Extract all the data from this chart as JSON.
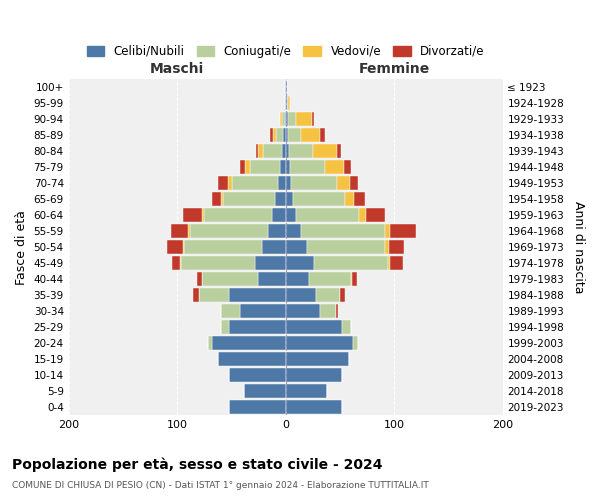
{
  "age_groups": [
    "0-4",
    "5-9",
    "10-14",
    "15-19",
    "20-24",
    "25-29",
    "30-34",
    "35-39",
    "40-44",
    "45-49",
    "50-54",
    "55-59",
    "60-64",
    "65-69",
    "70-74",
    "75-79",
    "80-84",
    "85-89",
    "90-94",
    "95-99",
    "100+"
  ],
  "birth_years": [
    "2019-2023",
    "2014-2018",
    "2009-2013",
    "2004-2008",
    "1999-2003",
    "1994-1998",
    "1989-1993",
    "1984-1988",
    "1979-1983",
    "1974-1978",
    "1969-1973",
    "1964-1968",
    "1959-1963",
    "1954-1958",
    "1949-1953",
    "1944-1948",
    "1939-1943",
    "1934-1938",
    "1929-1933",
    "1924-1928",
    "≤ 1923"
  ],
  "colors": {
    "celibe": "#4e79a7",
    "coniugato": "#b9cf9e",
    "vedovo": "#f5c242",
    "divorziato": "#c0392b"
  },
  "maschi": {
    "celibe": [
      52,
      38,
      52,
      62,
      68,
      52,
      42,
      52,
      25,
      28,
      22,
      16,
      13,
      10,
      7,
      5,
      3,
      2,
      1,
      1,
      1
    ],
    "coniugato": [
      0,
      0,
      0,
      0,
      4,
      8,
      18,
      28,
      52,
      68,
      72,
      72,
      62,
      48,
      42,
      28,
      18,
      7,
      2,
      0,
      0
    ],
    "vedovo": [
      0,
      0,
      0,
      0,
      0,
      0,
      0,
      0,
      0,
      1,
      1,
      2,
      2,
      2,
      4,
      4,
      4,
      3,
      2,
      0,
      0
    ],
    "divorziato": [
      0,
      0,
      0,
      0,
      0,
      0,
      0,
      5,
      5,
      8,
      14,
      16,
      18,
      8,
      9,
      5,
      2,
      2,
      0,
      0,
      0
    ]
  },
  "femmine": {
    "nubile": [
      52,
      38,
      52,
      58,
      62,
      52,
      32,
      28,
      22,
      26,
      20,
      14,
      10,
      7,
      5,
      4,
      3,
      2,
      2,
      1,
      1
    ],
    "coniugata": [
      0,
      0,
      0,
      0,
      5,
      8,
      14,
      22,
      38,
      68,
      72,
      78,
      58,
      48,
      42,
      32,
      22,
      12,
      8,
      1,
      0
    ],
    "vedova": [
      0,
      0,
      0,
      0,
      0,
      0,
      0,
      0,
      1,
      2,
      3,
      4,
      6,
      8,
      12,
      18,
      22,
      18,
      14,
      2,
      0
    ],
    "divorziata": [
      0,
      0,
      0,
      0,
      0,
      0,
      2,
      5,
      5,
      12,
      14,
      24,
      18,
      10,
      8,
      6,
      4,
      4,
      2,
      0,
      0
    ]
  },
  "title": "Popolazione per età, sesso e stato civile - 2024",
  "subtitle": "COMUNE DI CHIUSA DI PESIO (CN) - Dati ISTAT 1° gennaio 2024 - Elaborazione TUTTITALIA.IT",
  "ylabel_left": "Fasce di età",
  "ylabel_right": "Anni di nascita",
  "xlabel_maschi": "Maschi",
  "xlabel_femmine": "Femmine",
  "xlim": 200,
  "background_color": "#ffffff",
  "plot_bg_color": "#f0f0f0",
  "grid_color": "#cccccc"
}
